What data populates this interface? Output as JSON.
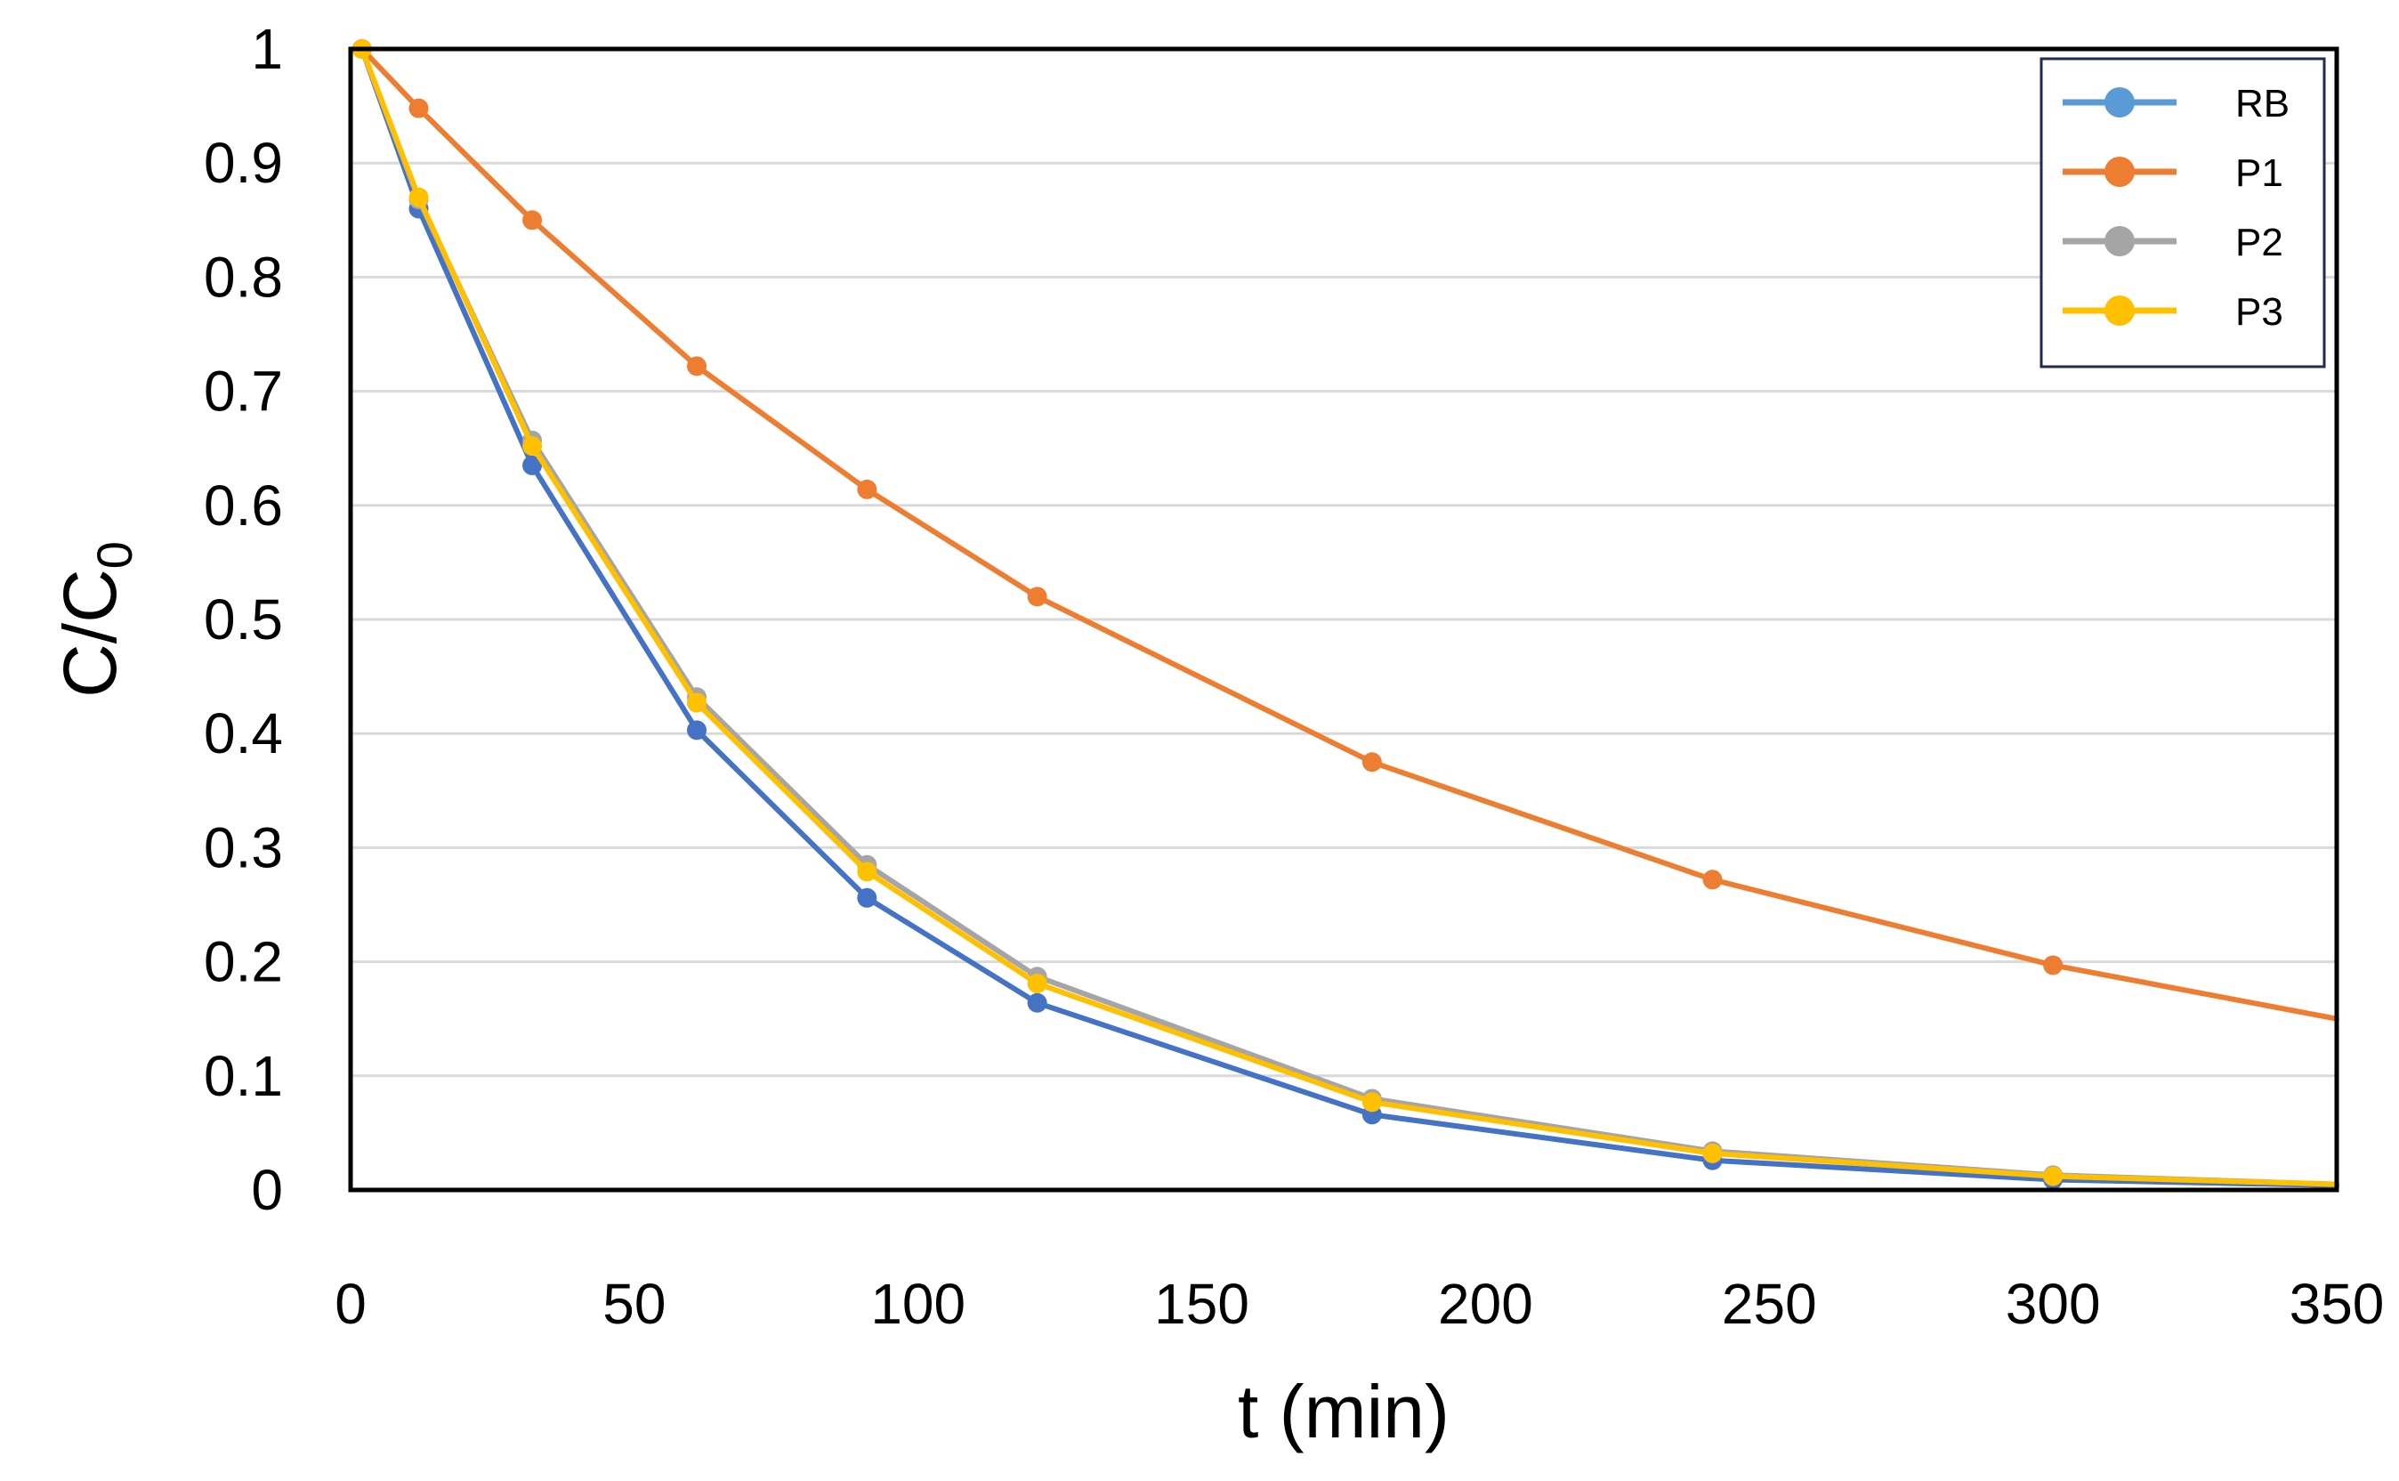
{
  "chart_data": {
    "type": "line",
    "title": "",
    "xlabel": "t (min)",
    "ylabel": {
      "main": "C/C",
      "subscript": "0"
    },
    "xlim": [
      0,
      350
    ],
    "ylim": [
      0,
      1
    ],
    "xticks": [
      0,
      50,
      100,
      150,
      200,
      250,
      300,
      350
    ],
    "yticks": [
      0,
      0.1,
      0.2,
      0.3,
      0.4,
      0.5,
      0.6,
      0.7,
      0.8,
      0.9,
      1
    ],
    "ytick_labels": [
      "0",
      "0.1",
      "0.2",
      "0.3",
      "0.4",
      "0.5",
      "0.6",
      "0.7",
      "0.8",
      "0.9",
      "1"
    ],
    "grid": "horizontal",
    "legend_position": "top-right",
    "series": [
      {
        "name": "RB",
        "color": "#4472c4",
        "legend_color": "#5b9bd5",
        "points": [
          [
            2,
            1.0
          ],
          [
            12,
            0.86
          ],
          [
            32,
            0.635
          ],
          [
            61,
            0.403
          ],
          [
            91,
            0.256
          ],
          [
            121,
            0.164
          ],
          [
            180,
            0.066
          ],
          [
            240,
            0.026
          ],
          [
            300,
            0.009
          ],
          [
            350,
            0.004
          ]
        ],
        "markers": [
          true,
          true,
          true,
          true,
          true,
          true,
          true,
          true,
          true,
          false
        ]
      },
      {
        "name": "P1",
        "color": "#ed7d31",
        "legend_color": "#ed7d31",
        "points": [
          [
            2,
            1.0
          ],
          [
            12,
            0.948
          ],
          [
            32,
            0.85
          ],
          [
            61,
            0.722
          ],
          [
            91,
            0.614
          ],
          [
            121,
            0.52
          ],
          [
            180,
            0.375
          ],
          [
            240,
            0.272
          ],
          [
            300,
            0.197
          ],
          [
            350,
            0.15
          ]
        ],
        "markers": [
          true,
          true,
          true,
          true,
          true,
          true,
          true,
          true,
          true,
          false
        ]
      },
      {
        "name": "P2",
        "color": "#a5a5a5",
        "legend_color": "#a5a5a5",
        "points": [
          [
            2,
            1.0
          ],
          [
            12,
            0.868
          ],
          [
            32,
            0.657
          ],
          [
            61,
            0.432
          ],
          [
            91,
            0.285
          ],
          [
            121,
            0.187
          ],
          [
            180,
            0.08
          ],
          [
            240,
            0.034
          ],
          [
            300,
            0.013
          ],
          [
            350,
            0.005
          ]
        ],
        "markers": [
          true,
          true,
          true,
          true,
          true,
          true,
          true,
          true,
          true,
          false
        ]
      },
      {
        "name": "P3",
        "color": "#ffc000",
        "legend_color": "#ffc000",
        "points": [
          [
            2,
            1.0
          ],
          [
            12,
            0.87
          ],
          [
            32,
            0.652
          ],
          [
            61,
            0.427
          ],
          [
            91,
            0.279
          ],
          [
            121,
            0.181
          ],
          [
            180,
            0.077
          ],
          [
            240,
            0.032
          ],
          [
            300,
            0.012
          ],
          [
            350,
            0.005
          ]
        ],
        "markers": [
          true,
          true,
          true,
          true,
          true,
          true,
          true,
          true,
          true,
          false
        ]
      }
    ]
  }
}
